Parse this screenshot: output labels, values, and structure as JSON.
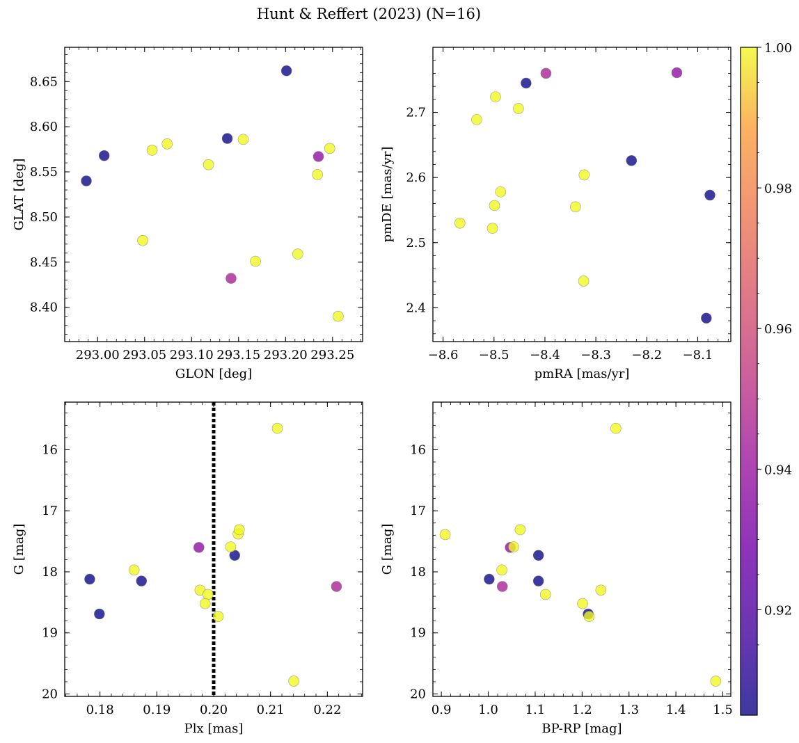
{
  "figure": {
    "title": "Hunt & Reffert (2023) (N=16)"
  },
  "colorbar": {
    "colormap": "plasma",
    "vmin": 0.905,
    "vmax": 1.0,
    "ticks": [
      0.92,
      0.94,
      0.96,
      0.98,
      1.0
    ],
    "tick_labels": [
      "0.92",
      "0.94",
      "0.96",
      "0.98",
      "1.00"
    ]
  },
  "chart_data": [
    {
      "type": "scatter",
      "xlabel": "GLON [deg]",
      "ylabel": "GLAT [deg]",
      "xlim": [
        292.965,
        293.282
      ],
      "ylim": [
        8.362,
        8.688
      ],
      "xticks": [
        293.0,
        293.05,
        293.1,
        293.15,
        293.2,
        293.25
      ],
      "xtick_labels": [
        "293.00",
        "293.05",
        "293.10",
        "293.15",
        "293.20",
        "293.25"
      ],
      "yticks": [
        8.4,
        8.45,
        8.5,
        8.55,
        8.6,
        8.65
      ],
      "ytick_labels": [
        "8.40",
        "8.45",
        "8.50",
        "8.55",
        "8.60",
        "8.65"
      ],
      "invert_y": false,
      "points": [
        {
          "x": 292.988,
          "y": 8.54,
          "c": 0.905
        },
        {
          "x": 293.007,
          "y": 8.568,
          "c": 0.905
        },
        {
          "x": 293.201,
          "y": 8.662,
          "c": 0.905
        },
        {
          "x": 293.138,
          "y": 8.587,
          "c": 0.905
        },
        {
          "x": 293.048,
          "y": 8.474,
          "c": 1.0
        },
        {
          "x": 293.058,
          "y": 8.574,
          "c": 1.0
        },
        {
          "x": 293.074,
          "y": 8.581,
          "c": 1.0
        },
        {
          "x": 293.118,
          "y": 8.558,
          "c": 1.0
        },
        {
          "x": 293.155,
          "y": 8.586,
          "c": 1.0
        },
        {
          "x": 293.142,
          "y": 8.432,
          "c": 0.945
        },
        {
          "x": 293.168,
          "y": 8.451,
          "c": 1.0
        },
        {
          "x": 293.213,
          "y": 8.459,
          "c": 1.0
        },
        {
          "x": 293.235,
          "y": 8.567,
          "c": 0.937
        },
        {
          "x": 293.234,
          "y": 8.547,
          "c": 1.0
        },
        {
          "x": 293.247,
          "y": 8.576,
          "c": 1.0
        },
        {
          "x": 293.256,
          "y": 8.39,
          "c": 1.0
        }
      ]
    },
    {
      "type": "scatter",
      "xlabel": "pmRA [mas/yr]",
      "ylabel": "pmDE [mas/yr]",
      "xlim": [
        -8.62,
        -8.035
      ],
      "ylim": [
        2.348,
        2.8
      ],
      "xticks": [
        -8.6,
        -8.5,
        -8.4,
        -8.3,
        -8.2,
        -8.1
      ],
      "xtick_labels": [
        "−8.6",
        "−8.5",
        "−8.4",
        "−8.3",
        "−8.2",
        "−8.1"
      ],
      "yticks": [
        2.4,
        2.5,
        2.6,
        2.7
      ],
      "ytick_labels": [
        "2.4",
        "2.5",
        "2.6",
        "2.7"
      ],
      "invert_y": false,
      "points": [
        {
          "x": -8.437,
          "y": 2.745,
          "c": 0.905
        },
        {
          "x": -8.23,
          "y": 2.626,
          "c": 0.905
        },
        {
          "x": -8.076,
          "y": 2.573,
          "c": 0.905
        },
        {
          "x": -8.083,
          "y": 2.384,
          "c": 0.905
        },
        {
          "x": -8.398,
          "y": 2.76,
          "c": 0.945
        },
        {
          "x": -8.141,
          "y": 2.761,
          "c": 0.937
        },
        {
          "x": -8.497,
          "y": 2.724,
          "c": 1.0
        },
        {
          "x": -8.452,
          "y": 2.706,
          "c": 1.0
        },
        {
          "x": -8.534,
          "y": 2.689,
          "c": 1.0
        },
        {
          "x": -8.323,
          "y": 2.604,
          "c": 1.0
        },
        {
          "x": -8.487,
          "y": 2.578,
          "c": 1.0
        },
        {
          "x": -8.499,
          "y": 2.557,
          "c": 1.0
        },
        {
          "x": -8.34,
          "y": 2.555,
          "c": 1.0
        },
        {
          "x": -8.567,
          "y": 2.53,
          "c": 1.0
        },
        {
          "x": -8.503,
          "y": 2.522,
          "c": 1.0
        },
        {
          "x": -8.324,
          "y": 2.441,
          "c": 1.0
        }
      ]
    },
    {
      "type": "scatter",
      "xlabel": "Plx [mas]",
      "ylabel": "G [mag]",
      "xlim": [
        0.1738,
        0.2262
      ],
      "ylim": [
        15.22,
        20.04
      ],
      "xticks": [
        0.18,
        0.19,
        0.2,
        0.21,
        0.22
      ],
      "xtick_labels": [
        "0.18",
        "0.19",
        "0.20",
        "0.21",
        "0.22"
      ],
      "yticks": [
        16,
        17,
        18,
        19,
        20
      ],
      "ytick_labels": [
        "16",
        "17",
        "18",
        "19",
        "20"
      ],
      "invert_y": true,
      "vline": {
        "x": 0.2,
        "style": "dotted"
      },
      "points": [
        {
          "x": 0.1782,
          "y": 18.12,
          "c": 0.905
        },
        {
          "x": 0.1799,
          "y": 18.69,
          "c": 0.905
        },
        {
          "x": 0.1873,
          "y": 18.15,
          "c": 0.905
        },
        {
          "x": 0.2037,
          "y": 17.73,
          "c": 0.905
        },
        {
          "x": 0.186,
          "y": 17.97,
          "c": 1.0
        },
        {
          "x": 0.1974,
          "y": 17.6,
          "c": 0.937
        },
        {
          "x": 0.1976,
          "y": 18.3,
          "c": 1.0
        },
        {
          "x": 0.199,
          "y": 18.37,
          "c": 1.0
        },
        {
          "x": 0.1985,
          "y": 18.52,
          "c": 1.0
        },
        {
          "x": 0.2008,
          "y": 18.73,
          "c": 1.0
        },
        {
          "x": 0.203,
          "y": 17.59,
          "c": 1.0
        },
        {
          "x": 0.2043,
          "y": 17.38,
          "c": 1.0
        },
        {
          "x": 0.2045,
          "y": 17.31,
          "c": 1.0
        },
        {
          "x": 0.2112,
          "y": 15.65,
          "c": 1.0
        },
        {
          "x": 0.2141,
          "y": 19.79,
          "c": 1.0
        },
        {
          "x": 0.2216,
          "y": 18.24,
          "c": 0.945
        }
      ]
    },
    {
      "type": "scatter",
      "xlabel": "BP-RP [mag]",
      "ylabel": "G [mag]",
      "xlim": [
        0.882,
        1.517
      ],
      "ylim": [
        15.22,
        20.04
      ],
      "xticks": [
        0.9,
        1.0,
        1.1,
        1.2,
        1.3,
        1.4,
        1.5
      ],
      "xtick_labels": [
        "0.9",
        "1.0",
        "1.1",
        "1.2",
        "1.3",
        "1.4",
        "1.5"
      ],
      "yticks": [
        16,
        17,
        18,
        19,
        20
      ],
      "ytick_labels": [
        "16",
        "17",
        "18",
        "19",
        "20"
      ],
      "invert_y": true,
      "points": [
        {
          "x": 1.002,
          "y": 18.12,
          "c": 0.905
        },
        {
          "x": 1.107,
          "y": 17.73,
          "c": 0.905
        },
        {
          "x": 1.107,
          "y": 18.15,
          "c": 0.905
        },
        {
          "x": 1.213,
          "y": 18.69,
          "c": 0.905
        },
        {
          "x": 0.908,
          "y": 17.39,
          "c": 1.0
        },
        {
          "x": 1.029,
          "y": 17.97,
          "c": 1.0
        },
        {
          "x": 1.03,
          "y": 18.24,
          "c": 0.945
        },
        {
          "x": 1.047,
          "y": 17.6,
          "c": 0.937
        },
        {
          "x": 1.054,
          "y": 17.59,
          "c": 1.0
        },
        {
          "x": 1.068,
          "y": 17.31,
          "c": 1.0
        },
        {
          "x": 1.122,
          "y": 18.37,
          "c": 1.0
        },
        {
          "x": 1.201,
          "y": 18.52,
          "c": 1.0
        },
        {
          "x": 1.215,
          "y": 18.73,
          "c": 1.0
        },
        {
          "x": 1.24,
          "y": 18.3,
          "c": 1.0
        },
        {
          "x": 1.272,
          "y": 15.65,
          "c": 1.0
        },
        {
          "x": 1.485,
          "y": 19.79,
          "c": 1.0
        }
      ]
    }
  ]
}
